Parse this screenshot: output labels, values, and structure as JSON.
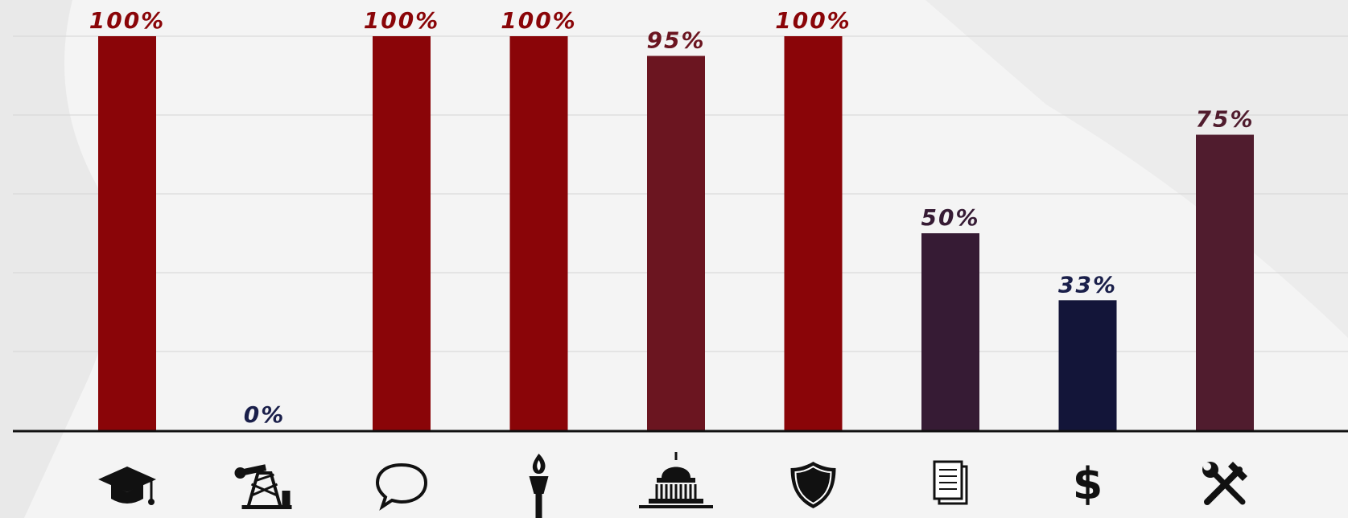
{
  "chart_data": {
    "type": "bar",
    "title": "",
    "xlabel": "",
    "ylabel": "",
    "ylim": [
      0,
      100
    ],
    "grid": true,
    "categories": [
      "graduation-cap-icon",
      "oil-pump-icon",
      "speech-bubble-icon",
      "torch-icon",
      "capitol-building-icon",
      "shield-icon",
      "documents-icon",
      "dollar-sign-icon",
      "tools-icon"
    ],
    "values": [
      100,
      0,
      100,
      100,
      95,
      100,
      50,
      33,
      75
    ],
    "labels": [
      "100%",
      "0%",
      "100%",
      "100%",
      "95%",
      "100%",
      "50%",
      "33%",
      "75%"
    ],
    "bar_colors": [
      "#8a0508",
      "#8a0508",
      "#8a0508",
      "#8a0508",
      "#6b1520",
      "#8a0508",
      "#361b34",
      "#131539",
      "#501c2e"
    ],
    "label_colors": [
      "#8a0508",
      "#1a1f4a",
      "#8a0508",
      "#8a0508",
      "#6b1520",
      "#8a0508",
      "#361b34",
      "#1a1f4a",
      "#501c2e"
    ]
  }
}
